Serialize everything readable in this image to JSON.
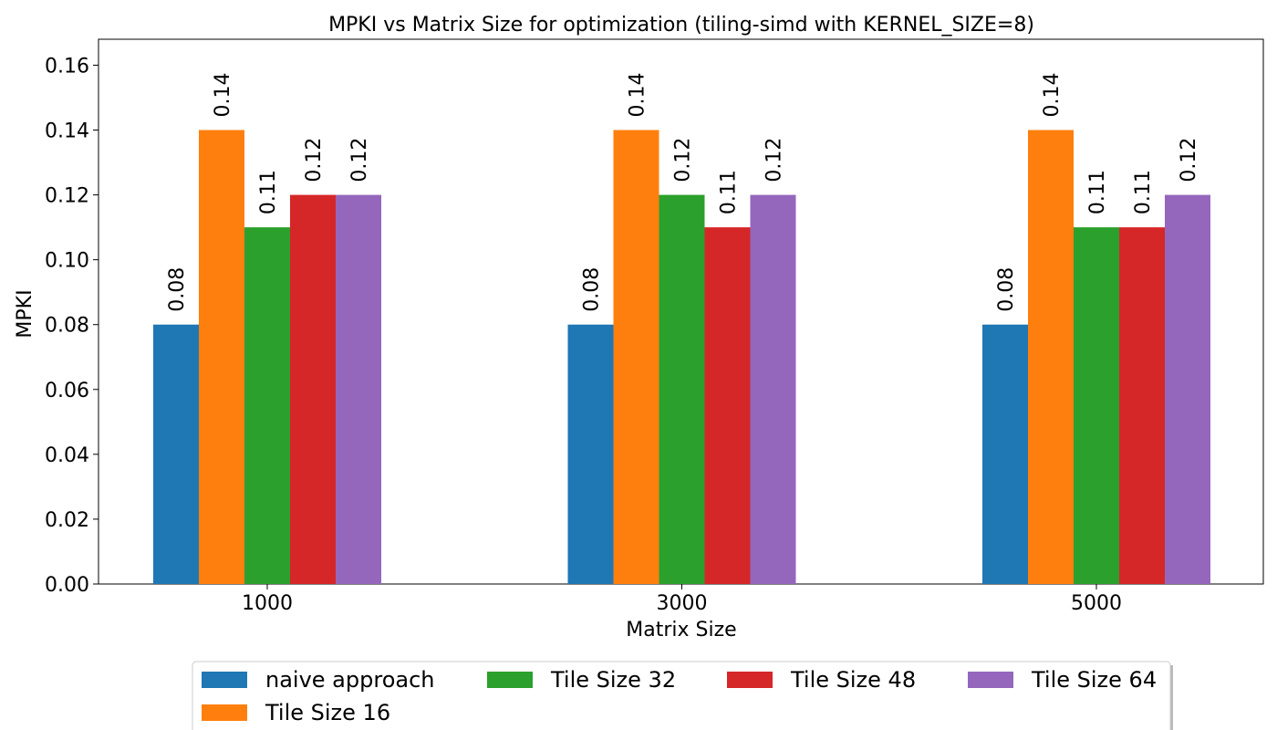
{
  "chart_data": {
    "type": "bar",
    "title": "MPKI vs Matrix Size for optimization (tiling-simd with KERNEL_SIZE=8)",
    "xlabel": "Matrix Size",
    "ylabel": "MPKI",
    "categories": [
      "1000",
      "3000",
      "5000"
    ],
    "ylim": [
      0,
      0.168
    ],
    "yticks": [
      "0.00",
      "0.02",
      "0.04",
      "0.06",
      "0.08",
      "0.10",
      "0.12",
      "0.14",
      "0.16"
    ],
    "grid": false,
    "legend_position": "bottom-center",
    "series": [
      {
        "name": "naive approach",
        "color": "#1f77b4",
        "values": [
          0.08,
          0.08,
          0.08
        ],
        "labels": [
          "0.08",
          "0.08",
          "0.08"
        ]
      },
      {
        "name": "Tile Size 16",
        "color": "#ff7f0e",
        "values": [
          0.14,
          0.14,
          0.14
        ],
        "labels": [
          "0.14",
          "0.14",
          "0.14"
        ]
      },
      {
        "name": "Tile Size 32",
        "color": "#2ca02c",
        "values": [
          0.11,
          0.12,
          0.11
        ],
        "labels": [
          "0.11",
          "0.12",
          "0.11"
        ]
      },
      {
        "name": "Tile Size 48",
        "color": "#d62728",
        "values": [
          0.12,
          0.11,
          0.11
        ],
        "labels": [
          "0.12",
          "0.11",
          "0.11"
        ]
      },
      {
        "name": "Tile Size 64",
        "color": "#9467bd",
        "values": [
          0.12,
          0.12,
          0.12
        ],
        "labels": [
          "0.12",
          "0.12",
          "0.12"
        ]
      }
    ]
  }
}
